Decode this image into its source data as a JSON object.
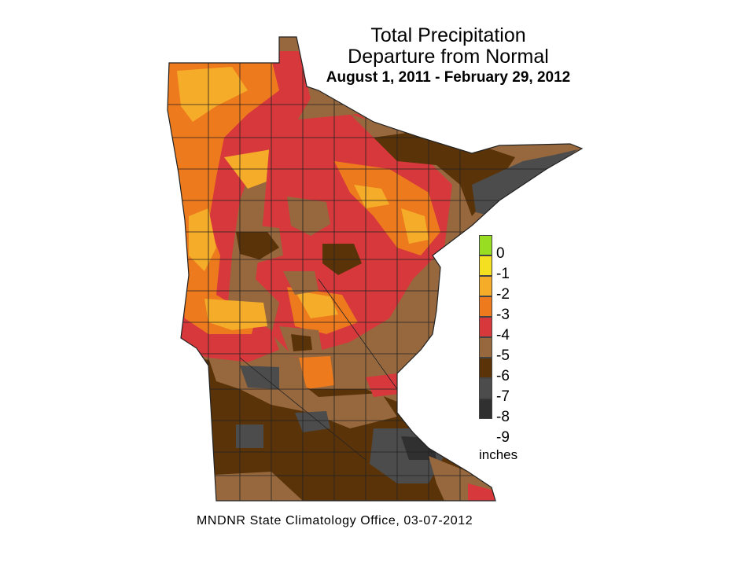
{
  "title": {
    "line1": "Total Precipitation",
    "line2": "Departure from Normal",
    "line3": "August 1, 2011 - February 29, 2012"
  },
  "legend": {
    "items": [
      {
        "label": "0",
        "color": "#99dd22"
      },
      {
        "label": "-1",
        "color": "#f4e020"
      },
      {
        "label": "-2",
        "color": "#f5ac28"
      },
      {
        "label": "-3",
        "color": "#ee7a1e"
      },
      {
        "label": "-4",
        "color": "#d6383c"
      },
      {
        "label": "-5",
        "color": "#97683e"
      },
      {
        "label": "-6",
        "color": "#5a3309"
      },
      {
        "label": "-7",
        "color": "#4c4c4c"
      },
      {
        "label": "-8",
        "color": "#303030"
      },
      {
        "label": "-9",
        "color": ""
      }
    ],
    "unit": "inches"
  },
  "credit": "MNDNR State Climatology Office, 03-07-2012"
}
